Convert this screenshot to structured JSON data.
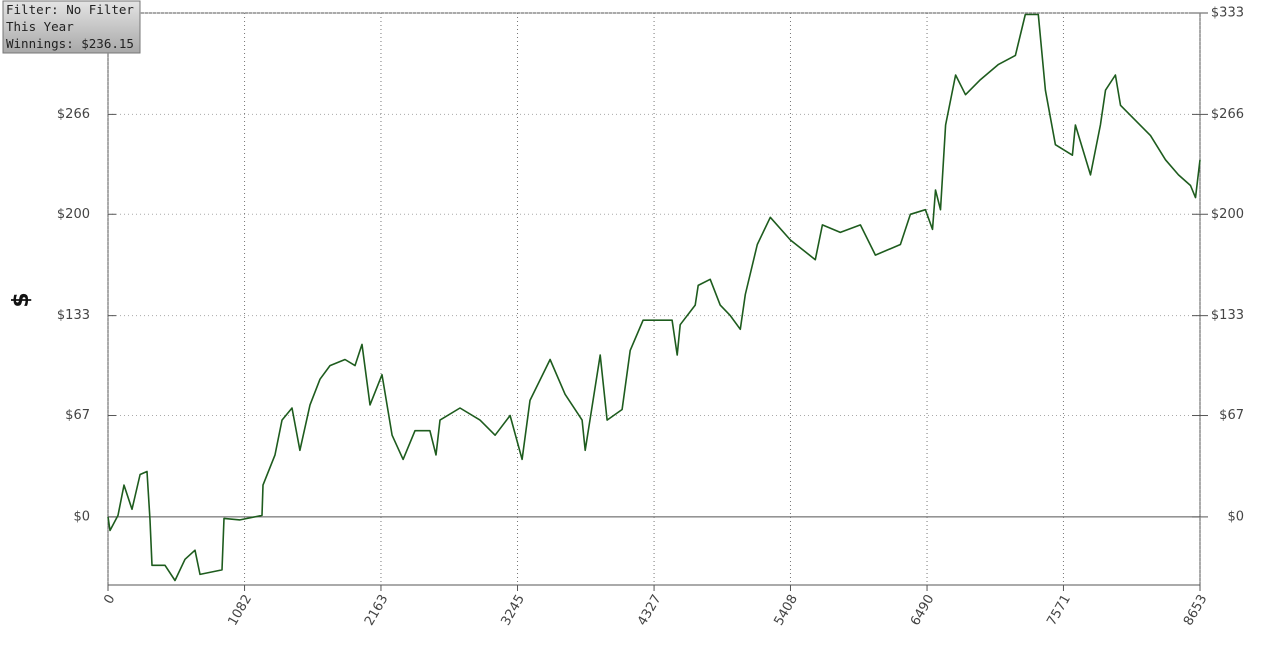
{
  "chart_data": {
    "type": "line",
    "info": [
      "Filter: No Filter",
      "This Year",
      "Winnings: $236.15"
    ],
    "y_label": "$",
    "x": [
      0,
      16,
      79,
      127,
      190,
      254,
      309,
      333,
      349,
      452,
      531,
      610,
      689,
      729,
      903,
      919,
      1046,
      1220,
      1228,
      1323,
      1379,
      1458,
      1521,
      1601,
      1680,
      1759,
      1878,
      1957,
      2013,
      2076,
      2171,
      2251,
      2338,
      2433,
      2551,
      2599,
      2631,
      2789,
      2948,
      3067,
      3186,
      3281,
      3344,
      3503,
      3622,
      3757,
      3781,
      3900,
      3955,
      4074,
      4138,
      4240,
      4351,
      4470,
      4510,
      4534,
      4653,
      4677,
      4772,
      4851,
      4931,
      5010,
      5050,
      5145,
      5248,
      5407,
      5605,
      5661,
      5803,
      5962,
      6081,
      6279,
      6358,
      6477,
      6533,
      6557,
      6597,
      6637,
      6716,
      6795,
      6914,
      7056,
      7190,
      7269,
      7372,
      7428,
      7507,
      7642,
      7666,
      7785,
      7864,
      7904,
      7983,
      8023,
      8142,
      8261,
      8380,
      8483,
      8578,
      8617,
      8653
    ],
    "series": [
      {
        "color": "#1e5c1e",
        "values": [
          0,
          -9,
          1,
          21,
          5,
          28,
          30,
          -2,
          -32,
          -32,
          -42,
          -28,
          -22,
          -38,
          -35,
          -1,
          -2,
          1,
          21,
          41,
          64,
          72,
          44,
          74,
          91,
          100,
          104,
          100,
          114,
          74,
          94,
          54,
          38,
          57,
          57,
          41,
          64,
          72,
          64,
          54,
          67,
          38,
          77,
          104,
          81,
          64,
          44,
          107,
          64,
          71,
          110,
          130,
          130,
          130,
          107,
          127,
          140,
          153,
          157,
          140,
          133,
          124,
          147,
          180,
          198,
          183,
          170,
          193,
          188,
          193,
          173,
          180,
          200,
          203,
          190,
          216,
          203,
          259,
          292,
          279,
          289,
          299,
          305,
          332,
          332,
          282,
          246,
          239,
          259,
          226,
          259,
          282,
          292,
          272,
          262,
          252,
          236,
          226,
          219,
          211,
          236
        ]
      }
    ],
    "xlim": [
      0,
      8653
    ],
    "xticks": [
      0,
      1082,
      2163,
      3245,
      4327,
      5408,
      6490,
      7571,
      8653
    ],
    "ylim": [
      -45,
      333
    ],
    "yticks": [
      {
        "value": 0,
        "label": "$0"
      },
      {
        "value": 67,
        "label": "$67"
      },
      {
        "value": 133,
        "label": "$133"
      },
      {
        "value": 200,
        "label": "$200"
      },
      {
        "value": 266,
        "label": "$266"
      },
      {
        "value": 333,
        "label": "$333"
      }
    ],
    "grid": true,
    "zero_line": true
  }
}
